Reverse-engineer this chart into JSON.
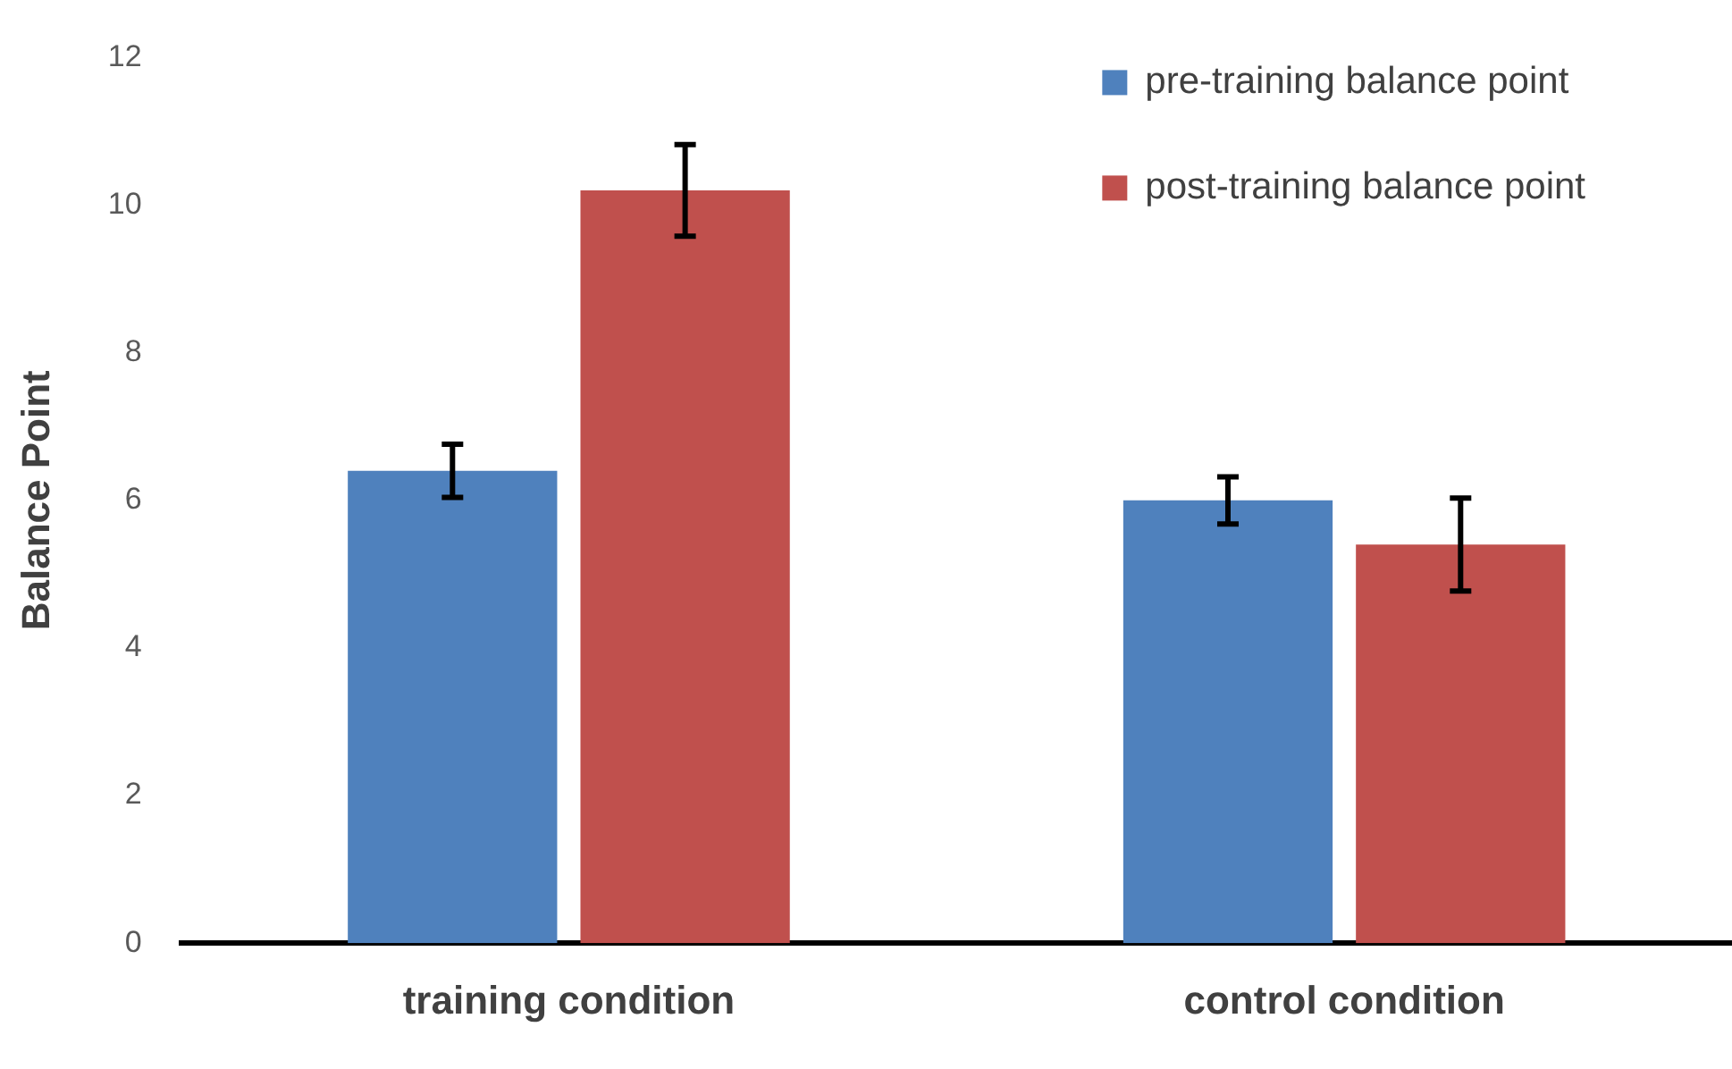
{
  "chart_data": {
    "type": "bar",
    "ylabel": "Balance Point",
    "categories": [
      "training condition",
      "control condition"
    ],
    "series": [
      {
        "name": "pre-training balance point",
        "color": "#4f81bd",
        "values": [
          6.4,
          6.0
        ],
        "errors": [
          0.36,
          0.32
        ]
      },
      {
        "name": "post-training balance point",
        "color": "#c0504d",
        "values": [
          10.2,
          5.4
        ],
        "errors": [
          0.62,
          0.63
        ]
      }
    ],
    "ylim": [
      0,
      12
    ],
    "yticks": [
      0,
      2,
      4,
      6,
      8,
      10,
      12
    ],
    "grid": false,
    "legend": "top right"
  }
}
